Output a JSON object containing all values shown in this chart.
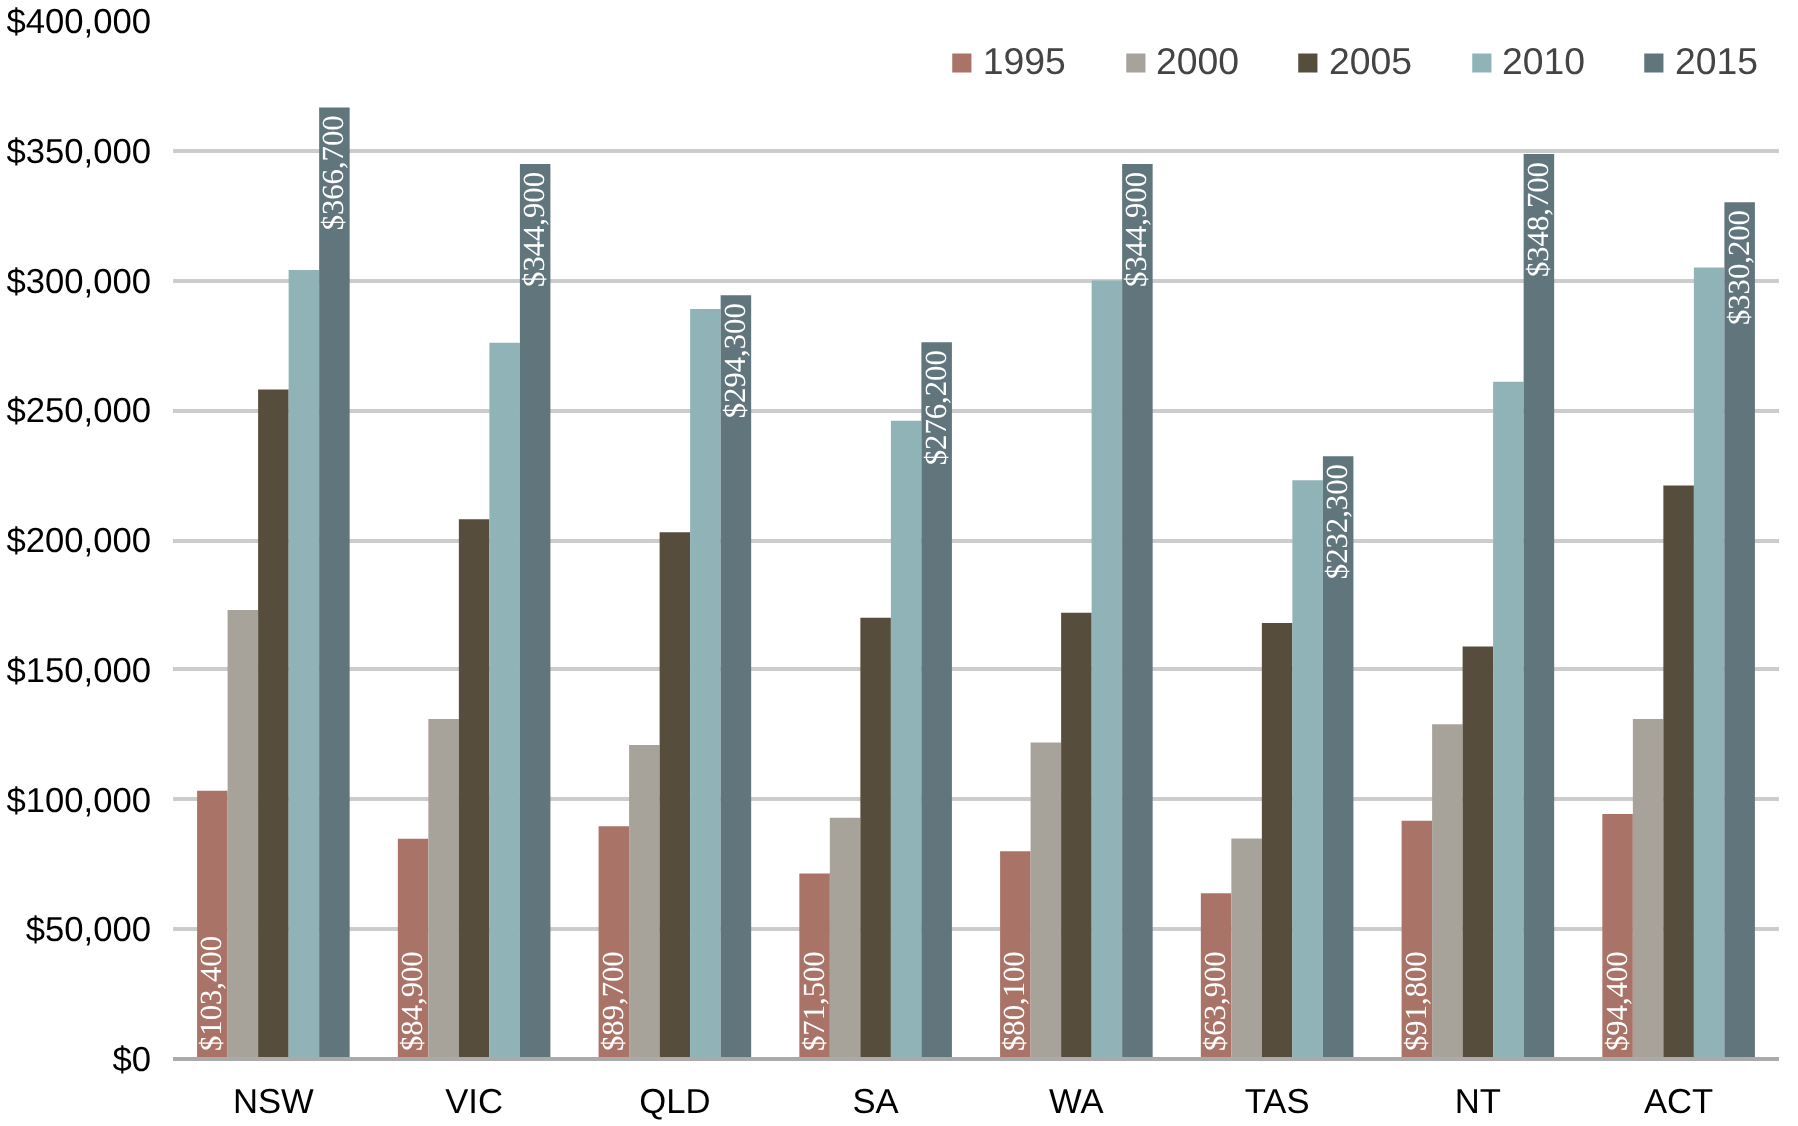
{
  "chart_data": {
    "type": "bar",
    "categories": [
      "NSW",
      "VIC",
      "QLD",
      "SA",
      "WA",
      "TAS",
      "NT",
      "ACT"
    ],
    "series": [
      {
        "name": "1995",
        "color": "#a97467",
        "values": [
          103400,
          84900,
          89700,
          71500,
          80100,
          63900,
          91800,
          94400
        ],
        "value_labels": [
          "$103,400",
          "$84,900",
          "$89,700",
          "$71,500",
          "$80,100",
          "$63,900",
          "$91,800",
          "$94,400"
        ]
      },
      {
        "name": "2000",
        "color": "#a8a39a",
        "values": [
          173000,
          131000,
          121000,
          93000,
          122000,
          85000,
          129000,
          131000
        ]
      },
      {
        "name": "2005",
        "color": "#564d3c",
        "values": [
          258000,
          208000,
          203000,
          170000,
          172000,
          168000,
          159000,
          221000
        ]
      },
      {
        "name": "2010",
        "color": "#8fb3b7",
        "values": [
          304000,
          276000,
          289000,
          246000,
          300000,
          223000,
          261000,
          305000
        ]
      },
      {
        "name": "2015",
        "color": "#61757c",
        "values": [
          366700,
          344900,
          294300,
          276200,
          344900,
          232300,
          348700,
          330200
        ],
        "value_labels": [
          "$366,700",
          "$344,900",
          "$294,300",
          "$276,200",
          "$344,900",
          "$232,300",
          "$348,700",
          "$330,200"
        ]
      }
    ],
    "ylim": [
      0,
      400000
    ],
    "yticks": [
      {
        "value": 0,
        "label": "$0"
      },
      {
        "value": 50000,
        "label": "$50,000"
      },
      {
        "value": 100000,
        "label": "$100,000"
      },
      {
        "value": 150000,
        "label": "$150,000"
      },
      {
        "value": 200000,
        "label": "$200,000"
      },
      {
        "value": 250000,
        "label": "$250,000"
      },
      {
        "value": 300000,
        "label": "$300,000"
      },
      {
        "value": 350000,
        "label": "$350,000"
      },
      {
        "value": 400000,
        "label": "$400,000"
      }
    ],
    "grid": "y",
    "legend": "top right"
  }
}
